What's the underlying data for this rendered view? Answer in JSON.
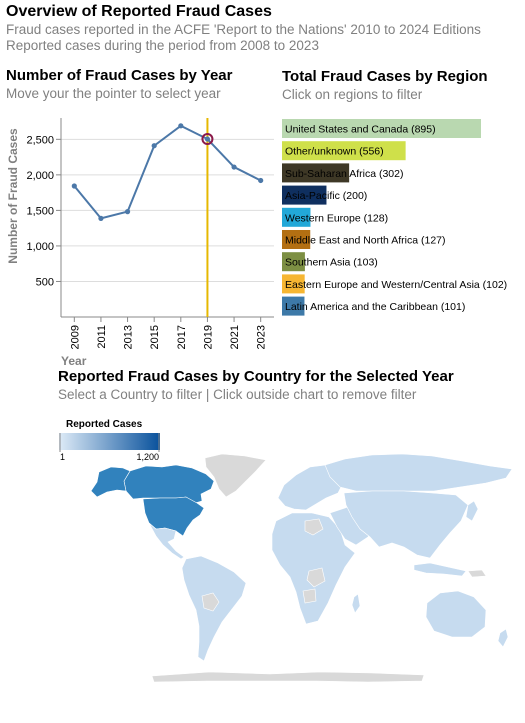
{
  "header": {
    "title": "Overview of Reported Fraud Cases",
    "subtitle_1": "Fraud cases reported in the ACFE 'Report to the Nations' 2010 to 2024 Editions",
    "subtitle_2": "Reported cases during the period from 2008 to 2023"
  },
  "line_panel": {
    "title": "Number of Fraud Cases by Year",
    "subtitle": "Move your the pointer to select year"
  },
  "bar_panel": {
    "title": "Total Fraud Cases by Region",
    "subtitle": "Click on regions to filter"
  },
  "map_panel": {
    "title": "Reported Fraud Cases by Country for the Selected Year",
    "subtitle": "Select a Country to filter | Click outside chart to remove filter",
    "legend_title": "Reported Cases",
    "legend_min": "1",
    "legend_max": "1,200",
    "colors": {
      "low": "#c6dbef",
      "high": "#08519c",
      "selected_usa": "#3182bd",
      "no_data": "#d9d9d9"
    }
  },
  "chart_data": [
    {
      "type": "line",
      "xlabel": "Year",
      "ylabel": "Number of Fraud Cases",
      "x": [
        2009,
        2011,
        2013,
        2015,
        2017,
        2019,
        2021,
        2023
      ],
      "x_ticks": [
        "2009",
        "2011",
        "2013",
        "2015",
        "2017",
        "2019",
        "2021",
        "2023"
      ],
      "y": [
        1843,
        1388,
        1483,
        2410,
        2690,
        2504,
        2110,
        1921
      ],
      "y_ticks": [
        "500",
        "1,000",
        "1,500",
        "2,000",
        "2,500"
      ],
      "ylim": [
        0,
        2800
      ],
      "selected_year": 2019,
      "grid": true,
      "colors": {
        "line": "#4c78a8",
        "rule": "#e6b800",
        "highlight": "#8b1a4a"
      }
    },
    {
      "type": "bar",
      "orientation": "horizontal",
      "categories": [
        "United States and Canada",
        "Other/unknown",
        "Sub-Saharan Africa",
        "Asia-Pacific",
        "Western Europe",
        "Middle East and North Africa",
        "Southern Asia",
        "Eastern Europe and Western/Central Asia",
        "Latin America and the Caribbean"
      ],
      "labels": [
        "United States and Canada (895)",
        "Other/unknown (556)",
        "Sub-Saharan Africa (302)",
        "Asia-Pacific (200)",
        "Western Europe (128)",
        "Middle East and North Africa (127)",
        "Southern Asia (103)",
        "Eastern Europe and Western/Central Asia (102)",
        "Latin America and the Caribbean (101)"
      ],
      "values": [
        895,
        556,
        302,
        200,
        128,
        127,
        103,
        102,
        101
      ],
      "colors": [
        "#b9d8b0",
        "#cfe04a",
        "#3e3826",
        "#0f2f5f",
        "#22a8d8",
        "#b36f12",
        "#7d8f43",
        "#f6b632",
        "#3d79a8"
      ]
    }
  ]
}
